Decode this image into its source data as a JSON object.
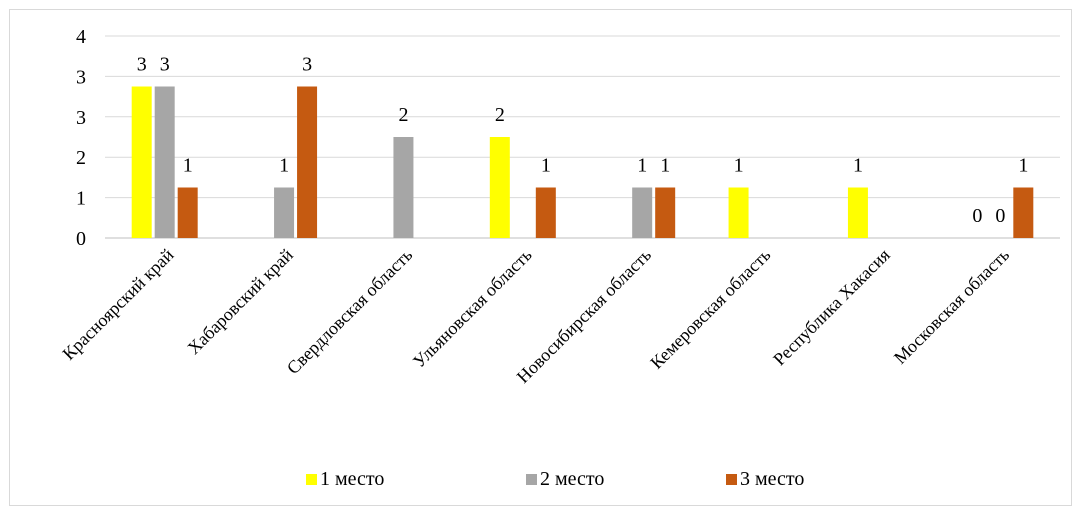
{
  "chart_data": {
    "type": "bar",
    "categories": [
      "Красноярский край",
      "Хабаровский край",
      "Свердловская область",
      "Ульяновская область",
      "Новосибирская область",
      "Кемеровская область",
      "Республика Хакасия",
      "Московская область"
    ],
    "series": [
      {
        "name": "1 место",
        "color": "#ffff00",
        "values": [
          3,
          0,
          0,
          2,
          0,
          1,
          1,
          0
        ]
      },
      {
        "name": "2 место",
        "color": "#a6a6a6",
        "values": [
          3,
          1,
          2,
          0,
          1,
          0,
          0,
          0
        ]
      },
      {
        "name": "3 место",
        "color": "#c55a11",
        "values": [
          1,
          3,
          0,
          1,
          1,
          0,
          0,
          1
        ]
      }
    ],
    "data_labels": [
      [
        "3",
        "",
        "",
        "2",
        "",
        "1",
        "1",
        "0"
      ],
      [
        "3",
        "1",
        "2",
        "",
        "1",
        "",
        "",
        "0"
      ],
      [
        "1",
        "3",
        "",
        "1",
        "1",
        "",
        "",
        "1"
      ]
    ],
    "y_tick_labels": [
      "0",
      "1",
      "2",
      "3",
      "3",
      "4"
    ],
    "ylim": [
      0,
      4
    ],
    "title": "",
    "xlabel": "",
    "ylabel": "",
    "grid": true,
    "legend": "bottom"
  }
}
